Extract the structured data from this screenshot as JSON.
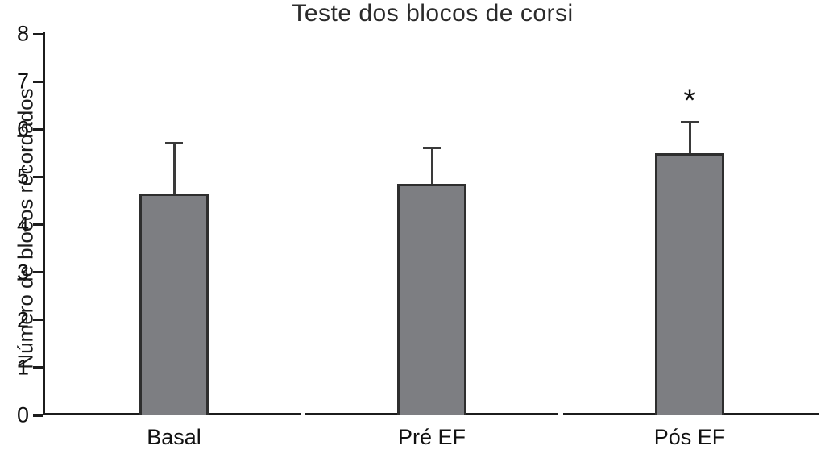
{
  "chart_data": {
    "type": "bar",
    "title": "Teste dos blocos de corsi",
    "ylabel": "Número de blocos recordados",
    "xlabel": "",
    "categories": [
      "Basal",
      "Pré EF",
      "Pós EF"
    ],
    "values": [
      4.65,
      4.85,
      5.5
    ],
    "error_up": [
      1.05,
      0.75,
      0.65
    ],
    "annotations": [
      {
        "category_index": 2,
        "text": "*",
        "meaning": "significance-marker"
      }
    ],
    "ylim": [
      0,
      8
    ],
    "ytick_step": 1,
    "grid": false,
    "legend": "none",
    "bar_color": "#7d7e82",
    "bar_border_color": "#2e2e2e",
    "axis_color": "#1c1c1c"
  }
}
